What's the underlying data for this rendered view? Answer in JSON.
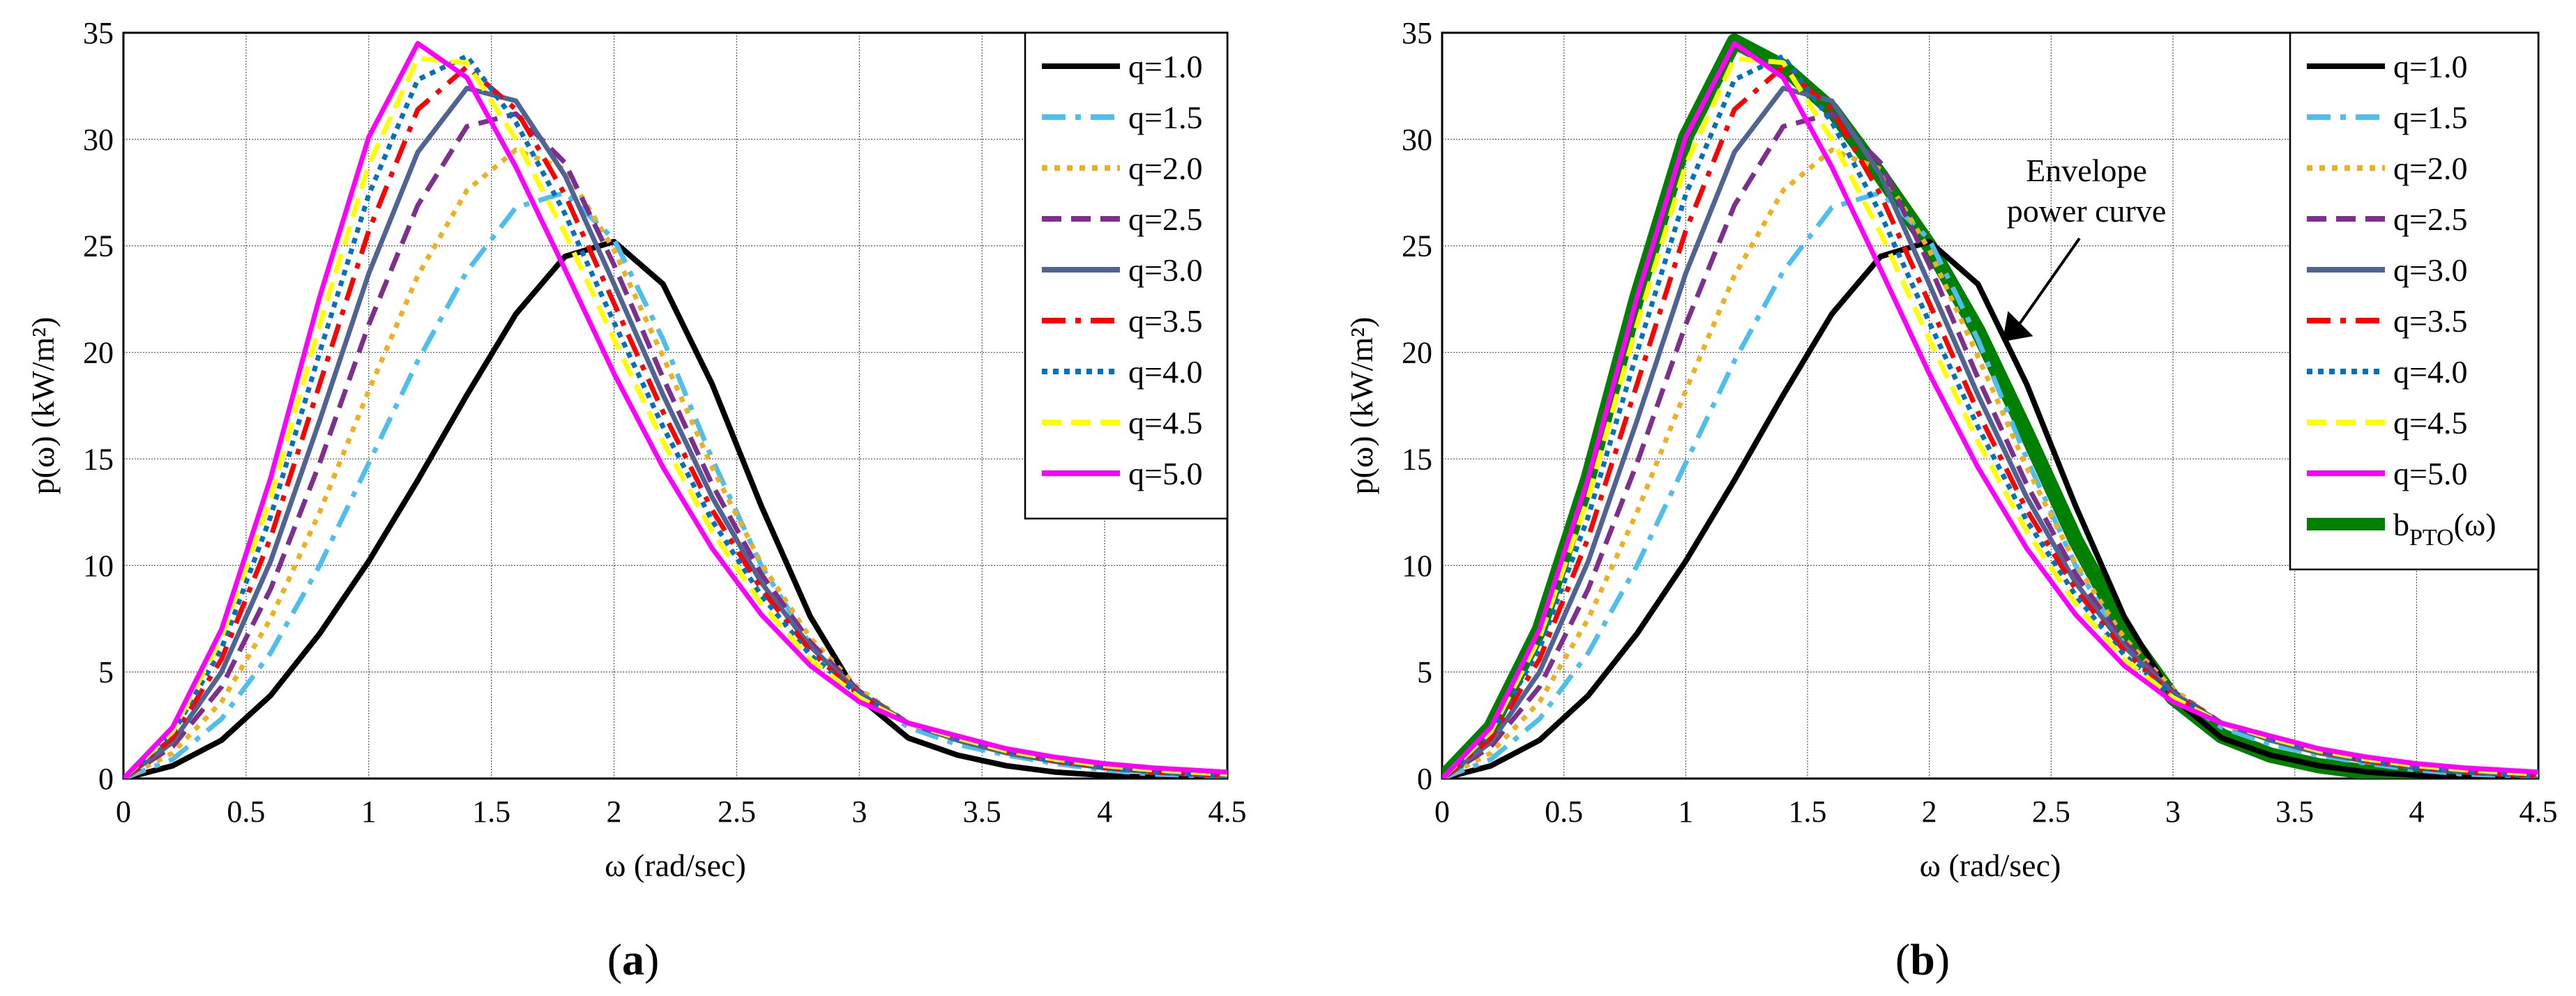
{
  "figure": {
    "captions": [
      "(a)",
      "(b)"
    ],
    "colors": {
      "q=1.0": "#000000",
      "q=1.5": "#4DBEEE",
      "q=2.0": "#EDB120",
      "q=2.5": "#7E2F8E",
      "q=3.0": "#4F6492",
      "q=3.5": "#FF0000",
      "q=4.0": "#0072BD",
      "q=4.5": "#FFFF00",
      "q=5.0": "#FF00FF",
      "b_PTO": "#008000"
    }
  },
  "chart_data": [
    {
      "type": "line",
      "panel": "(a)",
      "title": "",
      "xlabel": "ω (rad/sec)",
      "ylabel": "p(ω) (kW/m²)",
      "xlim": [
        0,
        4.5
      ],
      "ylim": [
        0,
        35
      ],
      "xticks": [
        "0",
        "0.5",
        "1",
        "1.5",
        "2",
        "2.5",
        "3",
        "3.5",
        "4",
        "4.5"
      ],
      "yticks": [
        "0",
        "5",
        "10",
        "15",
        "20",
        "25",
        "30",
        "35"
      ],
      "grid": true,
      "legend_position": "upper right",
      "x": [
        0,
        0.2,
        0.4,
        0.6,
        0.8,
        1.0,
        1.2,
        1.4,
        1.6,
        1.8,
        2.0,
        2.2,
        2.4,
        2.6,
        2.8,
        3.0,
        3.2,
        3.4,
        3.6,
        3.8,
        4.0,
        4.2,
        4.5
      ],
      "series": [
        {
          "name": "q=1.0",
          "style": "solid",
          "values": [
            0,
            0.6,
            1.8,
            3.9,
            6.8,
            10.2,
            14.0,
            18.0,
            21.8,
            24.5,
            25.2,
            23.2,
            18.5,
            12.8,
            7.6,
            3.8,
            1.9,
            1.1,
            0.6,
            0.3,
            0.15,
            0.05,
            0
          ]
        },
        {
          "name": "q=1.5",
          "style": "dashdot",
          "values": [
            0,
            0.9,
            2.8,
            5.9,
            10.0,
            14.8,
            19.6,
            23.8,
            26.8,
            27.5,
            25.3,
            20.6,
            15.0,
            10.0,
            6.3,
            4.0,
            2.4,
            1.6,
            1.1,
            0.7,
            0.4,
            0.2,
            0.1
          ]
        },
        {
          "name": "q=2.0",
          "style": "dotted",
          "values": [
            0,
            1.2,
            3.6,
            7.5,
            12.5,
            18.2,
            23.6,
            27.6,
            29.5,
            28.6,
            24.8,
            19.8,
            14.6,
            10.1,
            6.6,
            4.2,
            2.6,
            1.8,
            1.2,
            0.8,
            0.5,
            0.3,
            0.1
          ]
        },
        {
          "name": "q=2.5",
          "style": "dashed",
          "values": [
            0,
            1.5,
            4.3,
            8.9,
            14.8,
            21.3,
            26.9,
            30.6,
            31.2,
            28.9,
            24.1,
            18.8,
            13.8,
            9.6,
            6.4,
            4.1,
            2.6,
            1.8,
            1.2,
            0.8,
            0.5,
            0.3,
            0.1
          ]
        },
        {
          "name": "q=3.0",
          "style": "solid",
          "values": [
            0,
            1.7,
            5.0,
            10.2,
            16.8,
            23.7,
            29.4,
            32.4,
            31.8,
            28.3,
            23.2,
            18.0,
            13.2,
            9.2,
            6.2,
            4.0,
            2.6,
            1.8,
            1.2,
            0.8,
            0.5,
            0.3,
            0.1
          ]
        },
        {
          "name": "q=3.5",
          "style": "dashdot",
          "values": [
            0,
            1.9,
            5.6,
            11.3,
            18.5,
            25.7,
            31.4,
            33.4,
            31.4,
            27.4,
            22.3,
            17.2,
            12.6,
            8.9,
            6.0,
            3.9,
            2.6,
            2.0,
            1.3,
            0.8,
            0.5,
            0.3,
            0.1
          ]
        },
        {
          "name": "q=4.0",
          "style": "dotted",
          "values": [
            0,
            2.1,
            6.1,
            12.3,
            20.0,
            27.4,
            32.8,
            33.9,
            30.8,
            26.5,
            21.4,
            16.5,
            12.1,
            8.6,
            5.8,
            3.9,
            2.6,
            1.9,
            1.3,
            0.8,
            0.5,
            0.3,
            0.1
          ]
        },
        {
          "name": "q=4.5",
          "style": "dashed",
          "values": [
            0,
            2.2,
            6.6,
            13.2,
            21.3,
            28.8,
            33.8,
            33.6,
            30.0,
            25.6,
            20.6,
            15.8,
            11.6,
            8.2,
            5.6,
            3.8,
            2.6,
            1.9,
            1.3,
            0.9,
            0.6,
            0.4,
            0.2
          ]
        },
        {
          "name": "q=5.0",
          "style": "solid",
          "values": [
            0,
            2.4,
            7.0,
            14.1,
            22.6,
            30.1,
            34.5,
            32.9,
            28.7,
            23.9,
            19.0,
            14.6,
            10.8,
            7.7,
            5.3,
            3.6,
            2.6,
            2.0,
            1.4,
            1.0,
            0.7,
            0.5,
            0.3
          ]
        }
      ]
    },
    {
      "type": "line",
      "panel": "(b)",
      "title": "",
      "xlabel": "ω (rad/sec)",
      "ylabel": "p(ω) (kW/m²)",
      "xlim": [
        0,
        4.5
      ],
      "ylim": [
        0,
        35
      ],
      "xticks": [
        "0",
        "0.5",
        "1",
        "1.5",
        "2",
        "2.5",
        "3",
        "3.5",
        "4",
        "4.5"
      ],
      "yticks": [
        "0",
        "5",
        "10",
        "15",
        "20",
        "25",
        "30",
        "35"
      ],
      "grid": true,
      "legend_position": "upper right",
      "annotation": {
        "text": [
          "Envelope",
          "power curve"
        ],
        "arrow_to": [
          2.3,
          20.5
        ]
      },
      "x": [
        0,
        0.2,
        0.4,
        0.6,
        0.8,
        1.0,
        1.2,
        1.4,
        1.6,
        1.8,
        2.0,
        2.2,
        2.4,
        2.6,
        2.8,
        3.0,
        3.2,
        3.4,
        3.6,
        3.8,
        4.0,
        4.2,
        4.5
      ],
      "series_ref": "same q-series as panel (a)",
      "envelope": {
        "name": "b_PTO(ω)",
        "style": "solid-thick",
        "values": [
          0,
          2.4,
          7.0,
          14.1,
          22.6,
          30.1,
          34.6,
          33.4,
          31.4,
          28.3,
          25.0,
          21.0,
          16.2,
          11.2,
          7.0,
          3.8,
          2.0,
          1.1,
          0.6,
          0.3,
          0.15,
          0.05,
          0
        ]
      }
    }
  ],
  "legend_a": [
    "q=1.0",
    "q=1.5",
    "q=2.0",
    "q=2.5",
    "q=3.0",
    "q=3.5",
    "q=4.0",
    "q=4.5",
    "q=5.0"
  ],
  "legend_b": [
    "q=1.0",
    "q=1.5",
    "q=2.0",
    "q=2.5",
    "q=3.0",
    "q=3.5",
    "q=4.0",
    "q=4.5",
    "q=5.0",
    "b_PTO(ω)"
  ]
}
